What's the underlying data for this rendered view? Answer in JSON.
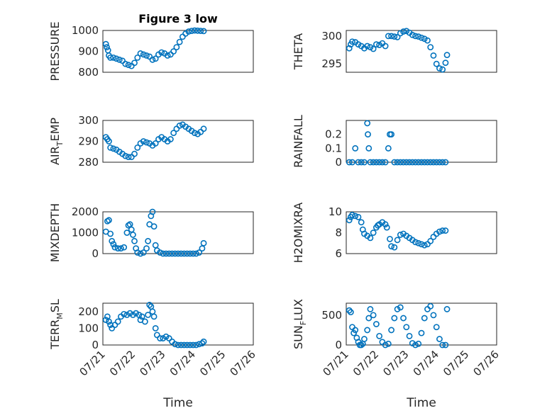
{
  "chart_data": [
    {
      "type": "scatter",
      "title": "Figure 3 low",
      "ylabel": "PRESSURE",
      "ylabel_sub": "",
      "ylim": [
        800,
        1000
      ],
      "yticks": [
        800,
        900,
        1000
      ],
      "xlim": [
        0,
        5
      ],
      "x_tick_labels_shown": false,
      "points": [
        [
          0.1,
          935
        ],
        [
          0.13,
          920
        ],
        [
          0.17,
          905
        ],
        [
          0.2,
          880
        ],
        [
          0.25,
          870
        ],
        [
          0.35,
          870
        ],
        [
          0.45,
          865
        ],
        [
          0.55,
          860
        ],
        [
          0.65,
          855
        ],
        [
          0.75,
          840
        ],
        [
          0.85,
          835
        ],
        [
          0.95,
          830
        ],
        [
          1.05,
          845
        ],
        [
          1.15,
          870
        ],
        [
          1.25,
          890
        ],
        [
          1.35,
          885
        ],
        [
          1.45,
          880
        ],
        [
          1.55,
          875
        ],
        [
          1.65,
          860
        ],
        [
          1.75,
          865
        ],
        [
          1.85,
          885
        ],
        [
          1.95,
          895
        ],
        [
          2.05,
          890
        ],
        [
          2.15,
          880
        ],
        [
          2.25,
          885
        ],
        [
          2.35,
          900
        ],
        [
          2.45,
          920
        ],
        [
          2.55,
          945
        ],
        [
          2.65,
          970
        ],
        [
          2.75,
          985
        ],
        [
          2.85,
          995
        ],
        [
          2.95,
          998
        ],
        [
          3.05,
          1000
        ],
        [
          3.15,
          999
        ],
        [
          3.25,
          998
        ],
        [
          3.35,
          997
        ]
      ]
    },
    {
      "type": "scatter",
      "title": "",
      "ylabel": "THETA",
      "ylabel_sub": "",
      "ylim": [
        293.5,
        301
      ],
      "yticks": [
        295,
        300
      ],
      "xlim": [
        0,
        5
      ],
      "x_tick_labels_shown": false,
      "points": [
        [
          0.1,
          297.8
        ],
        [
          0.15,
          298.5
        ],
        [
          0.2,
          299
        ],
        [
          0.3,
          298.9
        ],
        [
          0.4,
          298.5
        ],
        [
          0.5,
          298.2
        ],
        [
          0.6,
          297.8
        ],
        [
          0.7,
          298.2
        ],
        [
          0.8,
          298
        ],
        [
          0.9,
          297.7
        ],
        [
          1.0,
          298.5
        ],
        [
          1.1,
          298.4
        ],
        [
          1.2,
          298.7
        ],
        [
          1.3,
          298.2
        ],
        [
          1.4,
          300
        ],
        [
          1.5,
          300
        ],
        [
          1.6,
          299.9
        ],
        [
          1.7,
          299.8
        ],
        [
          1.8,
          300.5
        ],
        [
          1.9,
          300.8
        ],
        [
          2.0,
          300.9
        ],
        [
          2.1,
          300.6
        ],
        [
          2.2,
          300.2
        ],
        [
          2.3,
          300
        ],
        [
          2.4,
          299.9
        ],
        [
          2.5,
          299.7
        ],
        [
          2.6,
          299.5
        ],
        [
          2.7,
          299.2
        ],
        [
          2.8,
          298
        ],
        [
          2.9,
          296.5
        ],
        [
          3.0,
          295
        ],
        [
          3.1,
          294.2
        ],
        [
          3.2,
          294
        ],
        [
          3.3,
          295.2
        ],
        [
          3.35,
          296.6
        ]
      ]
    },
    {
      "type": "scatter",
      "title": "",
      "ylabel": "AIR",
      "ylabel_sub": "T",
      "ylabel_rest": "EMP",
      "ylim": [
        280,
        300
      ],
      "yticks": [
        280,
        290,
        300
      ],
      "xlim": [
        0,
        5
      ],
      "x_tick_labels_shown": false,
      "points": [
        [
          0.1,
          292
        ],
        [
          0.15,
          291
        ],
        [
          0.2,
          290
        ],
        [
          0.25,
          287
        ],
        [
          0.35,
          286.5
        ],
        [
          0.45,
          286
        ],
        [
          0.55,
          285
        ],
        [
          0.65,
          284
        ],
        [
          0.75,
          283
        ],
        [
          0.85,
          282.5
        ],
        [
          0.95,
          282.5
        ],
        [
          1.05,
          284
        ],
        [
          1.15,
          287
        ],
        [
          1.25,
          289
        ],
        [
          1.35,
          290
        ],
        [
          1.45,
          289.5
        ],
        [
          1.55,
          289
        ],
        [
          1.65,
          288
        ],
        [
          1.75,
          289
        ],
        [
          1.85,
          291
        ],
        [
          1.95,
          292
        ],
        [
          2.05,
          291
        ],
        [
          2.15,
          290
        ],
        [
          2.25,
          291
        ],
        [
          2.35,
          294
        ],
        [
          2.45,
          296
        ],
        [
          2.55,
          297.5
        ],
        [
          2.65,
          298
        ],
        [
          2.75,
          297
        ],
        [
          2.85,
          296
        ],
        [
          2.95,
          295
        ],
        [
          3.05,
          294
        ],
        [
          3.15,
          293.5
        ],
        [
          3.25,
          294.5
        ],
        [
          3.35,
          296
        ]
      ]
    },
    {
      "type": "scatter",
      "title": "",
      "ylabel": "RAINFALL",
      "ylabel_sub": "",
      "ylim": [
        0,
        0.3
      ],
      "yticks": [
        0,
        0.1,
        0.2
      ],
      "xlim": [
        0,
        5
      ],
      "x_tick_labels_shown": false,
      "points": [
        [
          0.1,
          0
        ],
        [
          0.2,
          0
        ],
        [
          0.3,
          0.1
        ],
        [
          0.4,
          0
        ],
        [
          0.5,
          0
        ],
        [
          0.6,
          0
        ],
        [
          0.7,
          0.28
        ],
        [
          0.72,
          0.2
        ],
        [
          0.75,
          0.1
        ],
        [
          0.8,
          0
        ],
        [
          0.9,
          0
        ],
        [
          1.0,
          0
        ],
        [
          1.1,
          0
        ],
        [
          1.2,
          0
        ],
        [
          1.3,
          0
        ],
        [
          1.4,
          0.1
        ],
        [
          1.45,
          0.2
        ],
        [
          1.5,
          0.2
        ],
        [
          1.6,
          0
        ],
        [
          1.7,
          0
        ],
        [
          1.8,
          0
        ],
        [
          1.9,
          0
        ],
        [
          2.0,
          0
        ],
        [
          2.1,
          0
        ],
        [
          2.2,
          0
        ],
        [
          2.3,
          0
        ],
        [
          2.4,
          0
        ],
        [
          2.5,
          0
        ],
        [
          2.6,
          0
        ],
        [
          2.7,
          0
        ],
        [
          2.8,
          0
        ],
        [
          2.9,
          0
        ],
        [
          3.0,
          0
        ],
        [
          3.1,
          0
        ],
        [
          3.2,
          0
        ],
        [
          3.3,
          0
        ]
      ]
    },
    {
      "type": "scatter",
      "title": "",
      "ylabel": "MIXDEPTH",
      "ylabel_sub": "",
      "ylim": [
        0,
        2000
      ],
      "yticks": [
        0,
        1000,
        2000
      ],
      "xlim": [
        0,
        5
      ],
      "x_tick_labels_shown": false,
      "points": [
        [
          0.1,
          1050
        ],
        [
          0.15,
          1550
        ],
        [
          0.2,
          1600
        ],
        [
          0.25,
          950
        ],
        [
          0.3,
          600
        ],
        [
          0.35,
          450
        ],
        [
          0.4,
          300
        ],
        [
          0.5,
          250
        ],
        [
          0.6,
          250
        ],
        [
          0.7,
          300
        ],
        [
          0.8,
          1000
        ],
        [
          0.85,
          1350
        ],
        [
          0.9,
          1400
        ],
        [
          0.95,
          1150
        ],
        [
          1.0,
          900
        ],
        [
          1.05,
          600
        ],
        [
          1.1,
          250
        ],
        [
          1.15,
          50
        ],
        [
          1.25,
          0
        ],
        [
          1.35,
          50
        ],
        [
          1.45,
          250
        ],
        [
          1.5,
          600
        ],
        [
          1.55,
          1400
        ],
        [
          1.6,
          1800
        ],
        [
          1.65,
          2000
        ],
        [
          1.7,
          1300
        ],
        [
          1.75,
          400
        ],
        [
          1.8,
          150
        ],
        [
          1.9,
          50
        ],
        [
          2.0,
          0
        ],
        [
          2.1,
          0
        ],
        [
          2.2,
          0
        ],
        [
          2.3,
          0
        ],
        [
          2.4,
          0
        ],
        [
          2.5,
          0
        ],
        [
          2.6,
          0
        ],
        [
          2.7,
          0
        ],
        [
          2.8,
          0
        ],
        [
          2.9,
          0
        ],
        [
          3.0,
          0
        ],
        [
          3.1,
          0
        ],
        [
          3.2,
          50
        ],
        [
          3.3,
          250
        ],
        [
          3.35,
          500
        ]
      ]
    },
    {
      "type": "scatter",
      "title": "",
      "ylabel": "H2OMIXRA",
      "ylabel_sub": "",
      "ylim": [
        6,
        10
      ],
      "yticks": [
        6,
        8,
        10
      ],
      "xlim": [
        0,
        5
      ],
      "x_tick_labels_shown": false,
      "points": [
        [
          0.1,
          9.2
        ],
        [
          0.15,
          9.5
        ],
        [
          0.2,
          9.7
        ],
        [
          0.3,
          9.6
        ],
        [
          0.4,
          9.5
        ],
        [
          0.5,
          9
        ],
        [
          0.55,
          8.3
        ],
        [
          0.6,
          7.9
        ],
        [
          0.7,
          7.7
        ],
        [
          0.8,
          7.5
        ],
        [
          0.9,
          8
        ],
        [
          1.0,
          8.5
        ],
        [
          1.05,
          8.7
        ],
        [
          1.1,
          8.8
        ],
        [
          1.2,
          9
        ],
        [
          1.3,
          8.8
        ],
        [
          1.35,
          8.5
        ],
        [
          1.45,
          7.4
        ],
        [
          1.5,
          6.7
        ],
        [
          1.6,
          6.6
        ],
        [
          1.7,
          7.3
        ],
        [
          1.8,
          7.8
        ],
        [
          1.9,
          7.9
        ],
        [
          2.0,
          7.7
        ],
        [
          2.1,
          7.5
        ],
        [
          2.2,
          7.3
        ],
        [
          2.3,
          7.1
        ],
        [
          2.4,
          7.0
        ],
        [
          2.5,
          6.9
        ],
        [
          2.6,
          6.8
        ],
        [
          2.7,
          6.9
        ],
        [
          2.8,
          7.2
        ],
        [
          2.9,
          7.6
        ],
        [
          3.0,
          7.9
        ],
        [
          3.1,
          8.1
        ],
        [
          3.2,
          8.2
        ],
        [
          3.3,
          8.2
        ]
      ]
    },
    {
      "type": "scatter",
      "title": "",
      "ylabel": "TERR",
      "ylabel_sub": "M",
      "ylabel_rest": "SL",
      "ylim": [
        0,
        250
      ],
      "yticks": [
        0,
        100,
        200
      ],
      "xlim": [
        0,
        5
      ],
      "x_tick_labels": [
        "07/21",
        "07/22",
        "07/23",
        "07/24",
        "07/25",
        "07/26"
      ],
      "x_tick_labels_shown": true,
      "points": [
        [
          0.1,
          150
        ],
        [
          0.15,
          170
        ],
        [
          0.2,
          140
        ],
        [
          0.25,
          120
        ],
        [
          0.3,
          100
        ],
        [
          0.4,
          120
        ],
        [
          0.5,
          140
        ],
        [
          0.6,
          170
        ],
        [
          0.7,
          185
        ],
        [
          0.8,
          180
        ],
        [
          0.9,
          190
        ],
        [
          1.0,
          180
        ],
        [
          1.1,
          190
        ],
        [
          1.2,
          180
        ],
        [
          1.25,
          150
        ],
        [
          1.3,
          170
        ],
        [
          1.4,
          140
        ],
        [
          1.5,
          180
        ],
        [
          1.55,
          240
        ],
        [
          1.6,
          230
        ],
        [
          1.65,
          200
        ],
        [
          1.7,
          170
        ],
        [
          1.75,
          100
        ],
        [
          1.8,
          60
        ],
        [
          1.9,
          40
        ],
        [
          2.0,
          40
        ],
        [
          2.1,
          50
        ],
        [
          2.2,
          40
        ],
        [
          2.3,
          20
        ],
        [
          2.4,
          5
        ],
        [
          2.5,
          0
        ],
        [
          2.6,
          0
        ],
        [
          2.7,
          0
        ],
        [
          2.8,
          0
        ],
        [
          2.9,
          0
        ],
        [
          3.0,
          0
        ],
        [
          3.1,
          0
        ],
        [
          3.2,
          5
        ],
        [
          3.3,
          10
        ],
        [
          3.35,
          20
        ]
      ]
    },
    {
      "type": "scatter",
      "title": "",
      "ylabel": "SUN",
      "ylabel_sub": "F",
      "ylabel_rest": "LUX",
      "ylim": [
        0,
        700
      ],
      "yticks": [
        0,
        500
      ],
      "xlim": [
        0,
        5
      ],
      "x_tick_labels": [
        "07/21",
        "07/22",
        "07/23",
        "07/24",
        "07/25",
        "07/26"
      ],
      "x_tick_labels_shown": true,
      "points": [
        [
          0.1,
          580
        ],
        [
          0.15,
          550
        ],
        [
          0.2,
          300
        ],
        [
          0.25,
          200
        ],
        [
          0.3,
          250
        ],
        [
          0.35,
          120
        ],
        [
          0.4,
          50
        ],
        [
          0.45,
          0
        ],
        [
          0.5,
          0
        ],
        [
          0.55,
          20
        ],
        [
          0.6,
          100
        ],
        [
          0.7,
          250
        ],
        [
          0.75,
          450
        ],
        [
          0.8,
          600
        ],
        [
          0.9,
          500
        ],
        [
          1.0,
          350
        ],
        [
          1.1,
          150
        ],
        [
          1.2,
          50
        ],
        [
          1.3,
          0
        ],
        [
          1.4,
          20
        ],
        [
          1.5,
          250
        ],
        [
          1.6,
          450
        ],
        [
          1.7,
          600
        ],
        [
          1.8,
          630
        ],
        [
          1.9,
          450
        ],
        [
          2.0,
          300
        ],
        [
          2.1,
          150
        ],
        [
          2.2,
          30
        ],
        [
          2.3,
          0
        ],
        [
          2.4,
          20
        ],
        [
          2.5,
          200
        ],
        [
          2.6,
          450
        ],
        [
          2.7,
          600
        ],
        [
          2.8,
          650
        ],
        [
          2.9,
          500
        ],
        [
          3.0,
          300
        ],
        [
          3.1,
          100
        ],
        [
          3.2,
          0
        ],
        [
          3.3,
          0
        ],
        [
          3.35,
          600
        ]
      ]
    }
  ],
  "xlabel_left": "Time",
  "xlabel_right": "Time"
}
